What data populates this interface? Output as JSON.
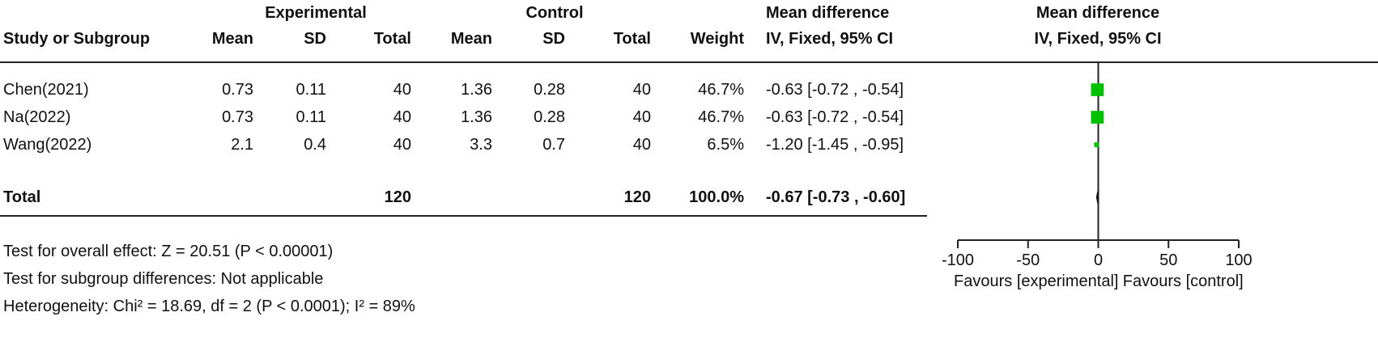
{
  "header": {
    "group_experimental": "Experimental",
    "group_control": "Control",
    "mean_difference": "Mean difference",
    "plot_mean_difference": "Mean difference",
    "col_study": "Study or Subgroup",
    "col_exp_mean": "Mean",
    "col_exp_sd": "SD",
    "col_exp_total": "Total",
    "col_ctl_mean": "Mean",
    "col_ctl_sd": "SD",
    "col_ctl_total": "Total",
    "col_weight": "Weight",
    "col_ci": "IV, Fixed, 95% CI",
    "plot_ci": "IV, Fixed, 95% CI"
  },
  "rows": [
    {
      "study": "Chen(2021)",
      "exp_mean": "0.73",
      "exp_sd": "0.11",
      "exp_total": "40",
      "ctl_mean": "1.36",
      "ctl_sd": "0.28",
      "ctl_total": "40",
      "weight": "46.7%",
      "ci": "-0.63 [-0.72 , -0.54]"
    },
    {
      "study": "Na(2022)",
      "exp_mean": "0.73",
      "exp_sd": "0.11",
      "exp_total": "40",
      "ctl_mean": "1.36",
      "ctl_sd": "0.28",
      "ctl_total": "40",
      "weight": "46.7%",
      "ci": "-0.63 [-0.72 , -0.54]"
    },
    {
      "study": "Wang(2022)",
      "exp_mean": "2.1",
      "exp_sd": "0.4",
      "exp_total": "40",
      "ctl_mean": "3.3",
      "ctl_sd": "0.7",
      "ctl_total": "40",
      "weight": "6.5%",
      "ci": "-1.20 [-1.45 , -0.95]"
    }
  ],
  "total": {
    "label": "Total",
    "exp_total": "120",
    "ctl_total": "120",
    "weight": "100.0%",
    "ci": "-0.67 [-0.73 , -0.60]"
  },
  "footer": {
    "overall_effect": "Test for overall effect: Z = 20.51 (P < 0.00001)",
    "subgroup": "Test for subgroup differences: Not applicable",
    "heterogeneity": "Heterogeneity: Chi² = 18.69, df = 2 (P < 0.0001); I² = 89%"
  },
  "colors": {
    "marker": "#00c000",
    "line": "#222222"
  },
  "chart_data": {
    "type": "forest",
    "xlim": [
      -100,
      100
    ],
    "xticks": [
      -100,
      -50,
      0,
      50,
      100
    ],
    "tick_labels": [
      "-100",
      "-50",
      "0",
      "50",
      "100"
    ],
    "favours_left": "Favours [experimental]",
    "favours_right": "Favours [control]",
    "studies": [
      {
        "name": "Chen(2021)",
        "estimate": -0.63,
        "lower": -0.72,
        "upper": -0.54,
        "weight": 46.7
      },
      {
        "name": "Na(2022)",
        "estimate": -0.63,
        "lower": -0.72,
        "upper": -0.54,
        "weight": 46.7
      },
      {
        "name": "Wang(2022)",
        "estimate": -1.2,
        "lower": -1.45,
        "upper": -0.95,
        "weight": 6.5
      }
    ],
    "pooled": {
      "estimate": -0.67,
      "lower": -0.73,
      "upper": -0.6
    }
  }
}
